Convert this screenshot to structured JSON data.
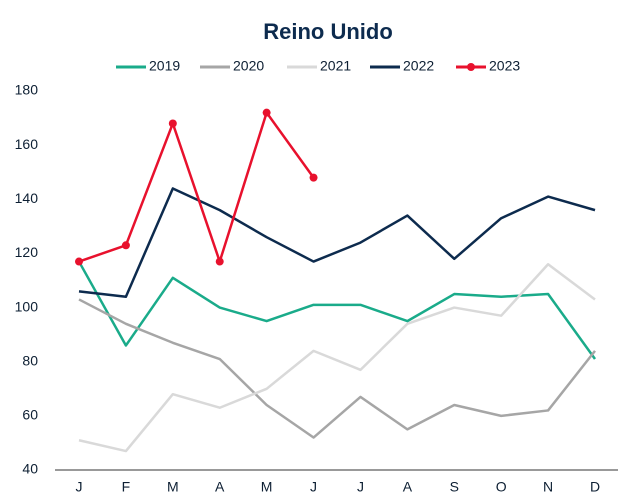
{
  "chart_data": {
    "type": "line",
    "title": "Reino Unido",
    "categories": [
      "J",
      "F",
      "M",
      "A",
      "M",
      "J",
      "J",
      "A",
      "S",
      "O",
      "N",
      "D"
    ],
    "series": [
      {
        "name": "2019",
        "color": "#1aab8a",
        "marker": false,
        "values": [
          117,
          86,
          111,
          100,
          95,
          101,
          101,
          95,
          105,
          104,
          105,
          81
        ]
      },
      {
        "name": "2020",
        "color": "#a6a6a6",
        "marker": false,
        "values": [
          103,
          94,
          87,
          81,
          64,
          52,
          67,
          55,
          64,
          60,
          62,
          84
        ]
      },
      {
        "name": "2021",
        "color": "#d9d9d9",
        "marker": false,
        "values": [
          51,
          47,
          68,
          63,
          70,
          84,
          77,
          94,
          100,
          97,
          116,
          103
        ]
      },
      {
        "name": "2022",
        "color": "#0d2b4e",
        "marker": false,
        "values": [
          106,
          104,
          144,
          136,
          126,
          117,
          124,
          134,
          118,
          133,
          141,
          136
        ]
      },
      {
        "name": "2023",
        "color": "#e8112d",
        "marker": true,
        "values": [
          117,
          123,
          168,
          117,
          172,
          148,
          null,
          null,
          null,
          null,
          null,
          null
        ]
      }
    ],
    "ylim": [
      40,
      180
    ],
    "yticks": [
      40,
      60,
      80,
      100,
      120,
      140,
      160,
      180
    ],
    "grid": false,
    "legend": "top"
  }
}
